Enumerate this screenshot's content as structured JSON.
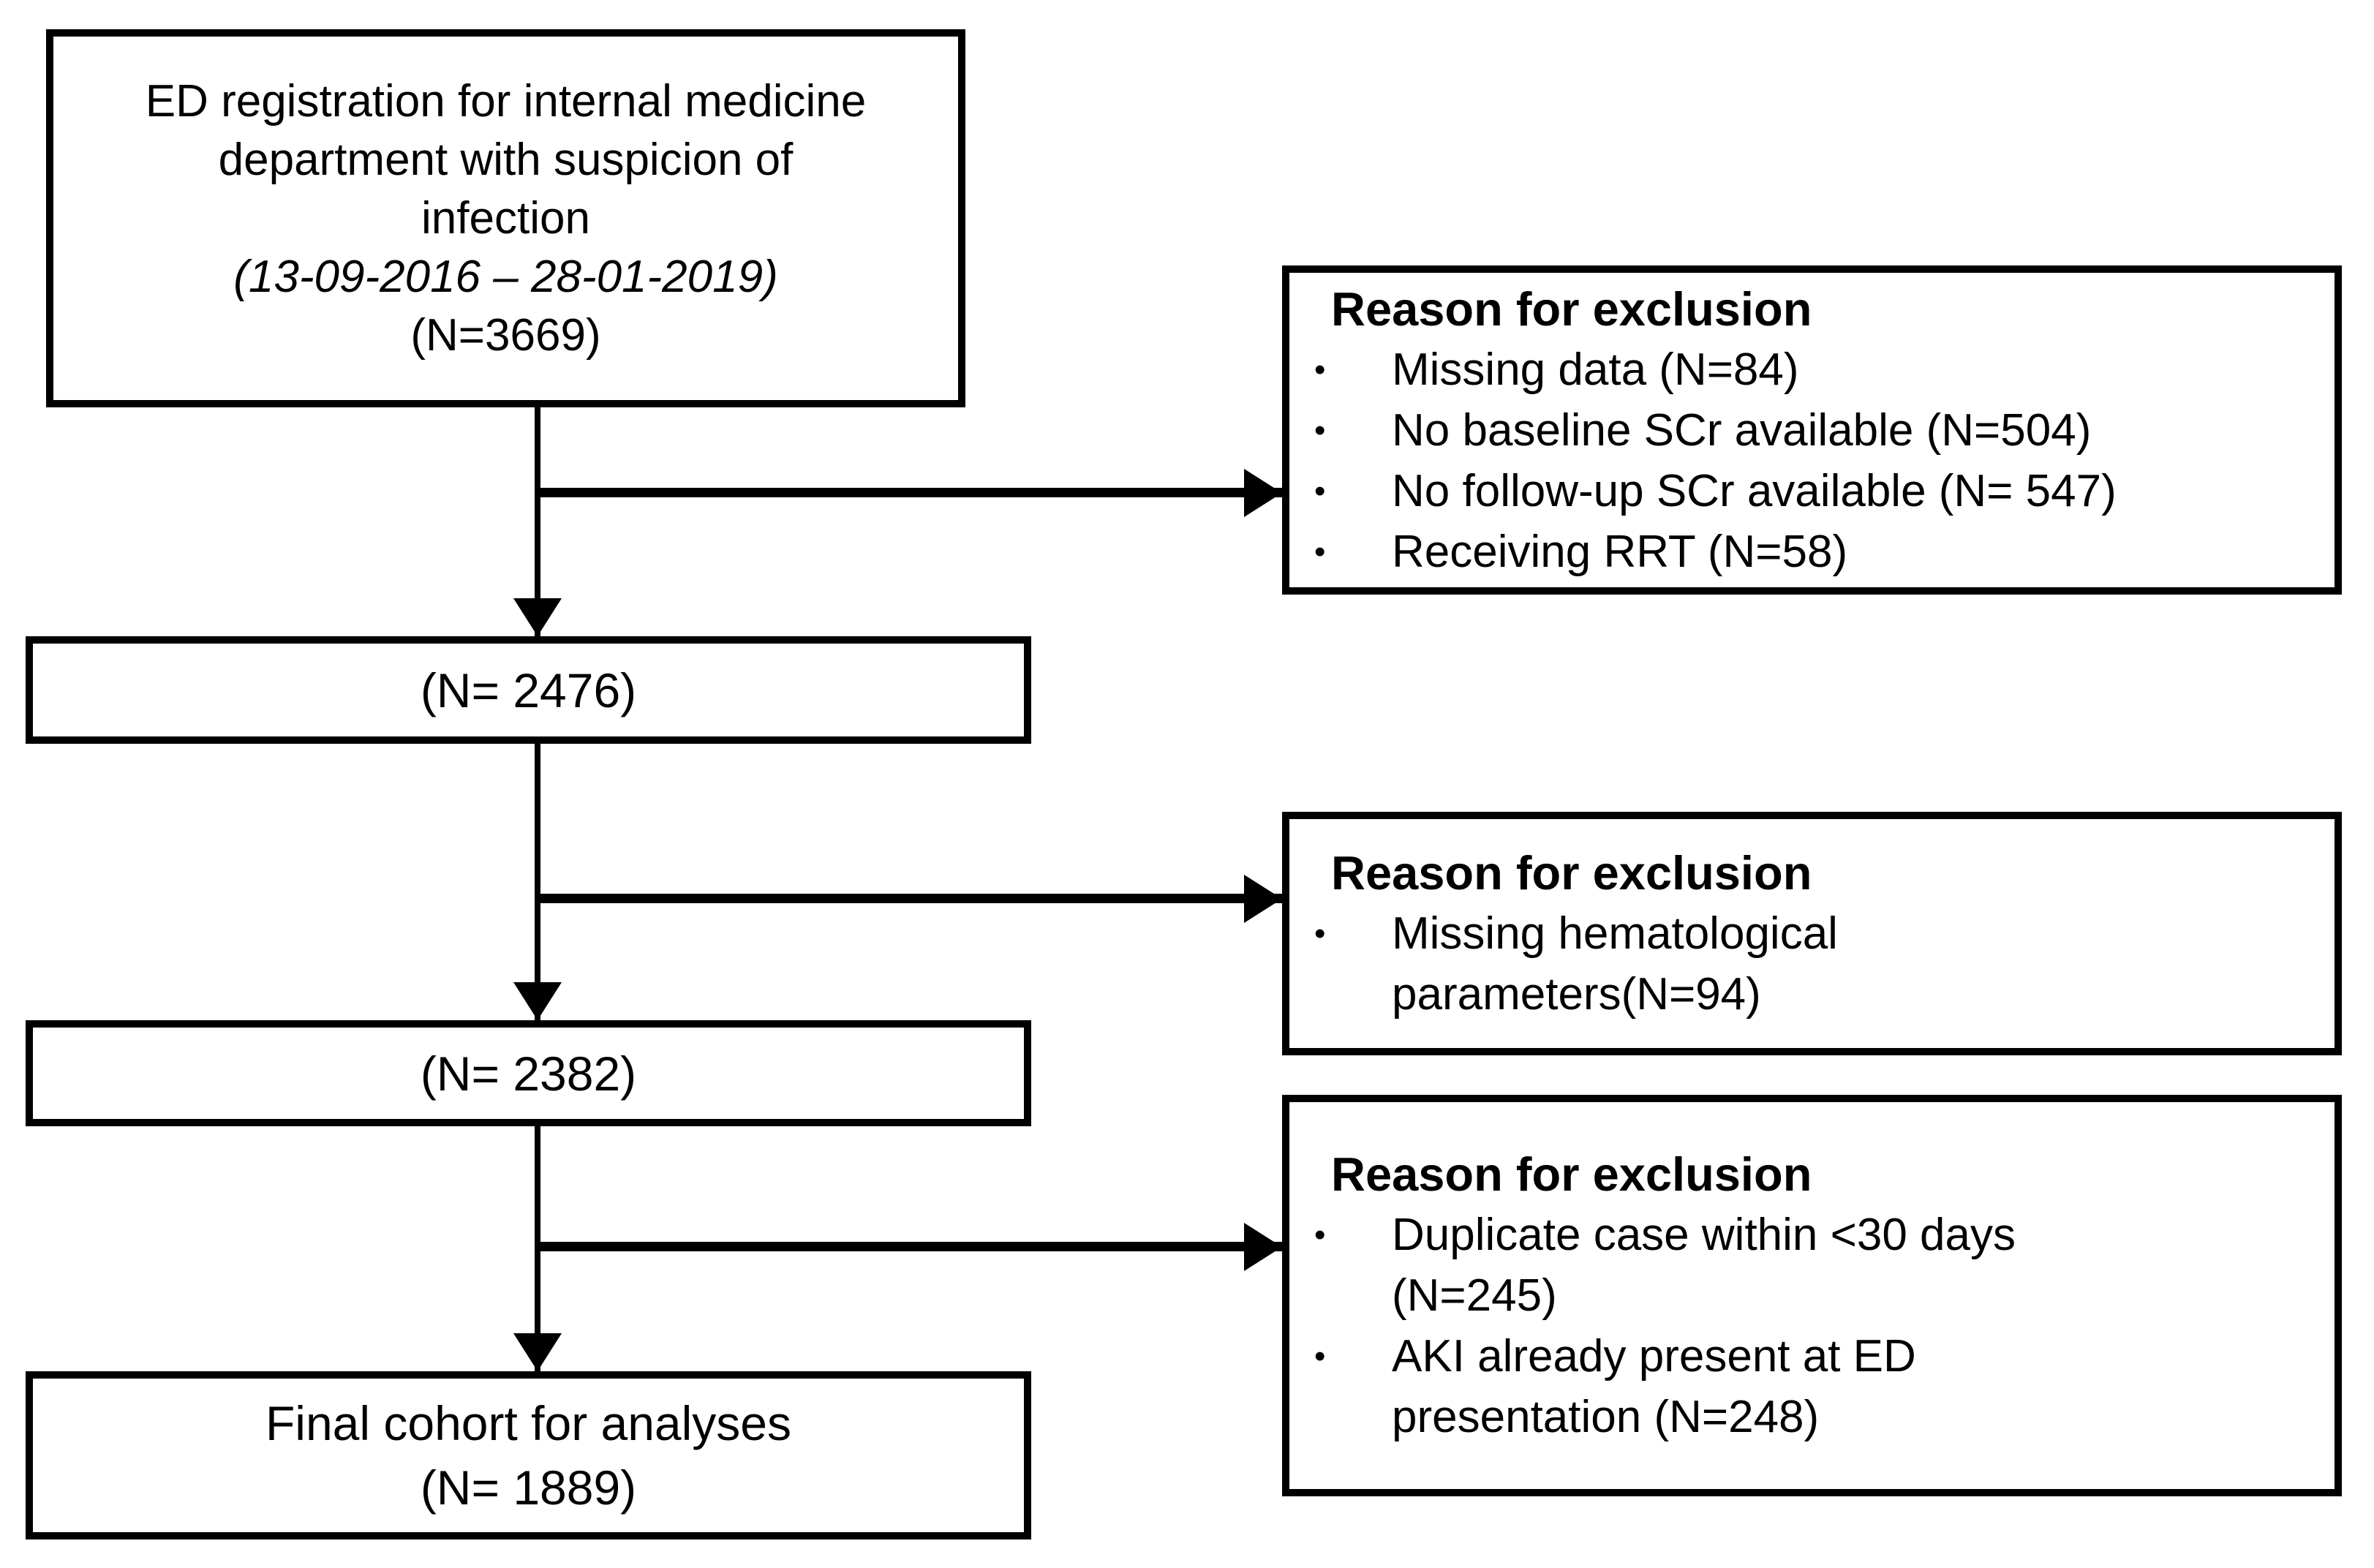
{
  "diagram": {
    "bullet_glyph": "•",
    "colors": {
      "line": "#000000",
      "background": "#ffffff",
      "text": "#000000"
    },
    "boxes": {
      "registration": {
        "line1": "ED registration for internal medicine",
        "line2": "department with suspicion of",
        "line3": "infection",
        "date_range": "(13-09-2016 – 28-01-2019)",
        "n": "(N=3669)"
      },
      "after_first_exclusion": {
        "n": "(N= 2476)"
      },
      "after_second_exclusion": {
        "n": "(N= 2382)"
      },
      "final": {
        "line1": "Final cohort for analyses",
        "n": "(N= 1889)"
      }
    },
    "exclusion_boxes": [
      {
        "title": "Reason for exclusion",
        "items": [
          "Missing data (N=84)",
          "No baseline SCr available (N=504)",
          "No follow-up SCr available (N= 547)",
          "Receiving RRT (N=58)"
        ]
      },
      {
        "title": "Reason for exclusion",
        "items": [
          "Missing hematological parameters(N=94)"
        ]
      },
      {
        "title": "Reason for exclusion",
        "items": [
          "Duplicate case within <30 days (N=245)",
          "AKI already present at ED presentation (N=248)"
        ]
      }
    ]
  }
}
